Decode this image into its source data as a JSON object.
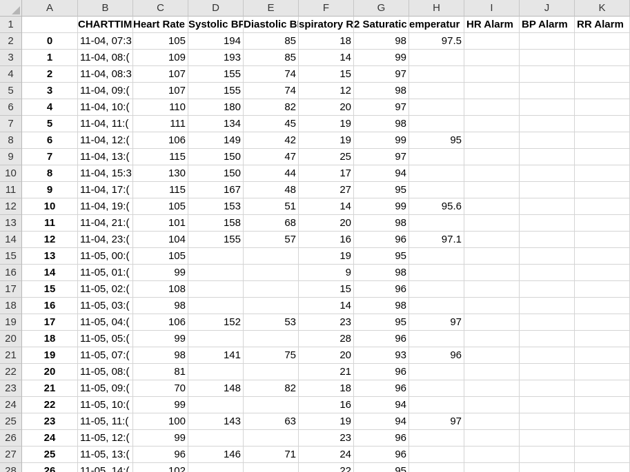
{
  "columns": [
    "A",
    "B",
    "C",
    "D",
    "E",
    "F",
    "G",
    "H",
    "I",
    "J",
    "K"
  ],
  "header_row": {
    "row_num": "1",
    "cells": [
      "",
      "CHARTTIMI",
      "Heart Rate",
      "Systolic BP",
      "Diastolic BP",
      "spiratory R",
      "2 Saturatic",
      "emperatur",
      "HR Alarm",
      "BP Alarm",
      "RR Alarm"
    ]
  },
  "rows": [
    {
      "r": "2",
      "a": "0",
      "b": "11-04, 07:3",
      "c": "105",
      "d": "194",
      "e": "85",
      "f": "18",
      "g": "98",
      "h": "97.5"
    },
    {
      "r": "3",
      "a": "1",
      "b": "11-04, 08:(",
      "c": "109",
      "d": "193",
      "e": "85",
      "f": "14",
      "g": "99",
      "h": ""
    },
    {
      "r": "4",
      "a": "2",
      "b": "11-04, 08:3",
      "c": "107",
      "d": "155",
      "e": "74",
      "f": "15",
      "g": "97",
      "h": ""
    },
    {
      "r": "5",
      "a": "3",
      "b": "11-04, 09:(",
      "c": "107",
      "d": "155",
      "e": "74",
      "f": "12",
      "g": "98",
      "h": ""
    },
    {
      "r": "6",
      "a": "4",
      "b": "11-04, 10:(",
      "c": "110",
      "d": "180",
      "e": "82",
      "f": "20",
      "g": "97",
      "h": ""
    },
    {
      "r": "7",
      "a": "5",
      "b": "11-04, 11:(",
      "c": "111",
      "d": "134",
      "e": "45",
      "f": "19",
      "g": "98",
      "h": ""
    },
    {
      "r": "8",
      "a": "6",
      "b": "11-04, 12:(",
      "c": "106",
      "d": "149",
      "e": "42",
      "f": "19",
      "g": "99",
      "h": "95"
    },
    {
      "r": "9",
      "a": "7",
      "b": "11-04, 13:(",
      "c": "115",
      "d": "150",
      "e": "47",
      "f": "25",
      "g": "97",
      "h": ""
    },
    {
      "r": "10",
      "a": "8",
      "b": "11-04, 15:3",
      "c": "130",
      "d": "150",
      "e": "44",
      "f": "17",
      "g": "94",
      "h": ""
    },
    {
      "r": "11",
      "a": "9",
      "b": "11-04, 17:(",
      "c": "115",
      "d": "167",
      "e": "48",
      "f": "27",
      "g": "95",
      "h": ""
    },
    {
      "r": "12",
      "a": "10",
      "b": "11-04, 19:(",
      "c": "105",
      "d": "153",
      "e": "51",
      "f": "14",
      "g": "99",
      "h": "95.6"
    },
    {
      "r": "13",
      "a": "11",
      "b": "11-04, 21:(",
      "c": "101",
      "d": "158",
      "e": "68",
      "f": "20",
      "g": "98",
      "h": ""
    },
    {
      "r": "14",
      "a": "12",
      "b": "11-04, 23:(",
      "c": "104",
      "d": "155",
      "e": "57",
      "f": "16",
      "g": "96",
      "h": "97.1"
    },
    {
      "r": "15",
      "a": "13",
      "b": "11-05, 00:(",
      "c": "105",
      "d": "",
      "e": "",
      "f": "19",
      "g": "95",
      "h": ""
    },
    {
      "r": "16",
      "a": "14",
      "b": "11-05, 01:(",
      "c": "99",
      "d": "",
      "e": "",
      "f": "9",
      "g": "98",
      "h": ""
    },
    {
      "r": "17",
      "a": "15",
      "b": "11-05, 02:(",
      "c": "108",
      "d": "",
      "e": "",
      "f": "15",
      "g": "96",
      "h": ""
    },
    {
      "r": "18",
      "a": "16",
      "b": "11-05, 03:(",
      "c": "98",
      "d": "",
      "e": "",
      "f": "14",
      "g": "98",
      "h": ""
    },
    {
      "r": "19",
      "a": "17",
      "b": "11-05, 04:(",
      "c": "106",
      "d": "152",
      "e": "53",
      "f": "23",
      "g": "95",
      "h": "97"
    },
    {
      "r": "20",
      "a": "18",
      "b": "11-05, 05:(",
      "c": "99",
      "d": "",
      "e": "",
      "f": "28",
      "g": "96",
      "h": ""
    },
    {
      "r": "21",
      "a": "19",
      "b": "11-05, 07:(",
      "c": "98",
      "d": "141",
      "e": "75",
      "f": "20",
      "g": "93",
      "h": "96"
    },
    {
      "r": "22",
      "a": "20",
      "b": "11-05, 08:(",
      "c": "81",
      "d": "",
      "e": "",
      "f": "21",
      "g": "96",
      "h": ""
    },
    {
      "r": "23",
      "a": "21",
      "b": "11-05, 09:(",
      "c": "70",
      "d": "148",
      "e": "82",
      "f": "18",
      "g": "96",
      "h": ""
    },
    {
      "r": "24",
      "a": "22",
      "b": "11-05, 10:(",
      "c": "99",
      "d": "",
      "e": "",
      "f": "16",
      "g": "94",
      "h": ""
    },
    {
      "r": "25",
      "a": "23",
      "b": "11-05, 11:(",
      "c": "100",
      "d": "143",
      "e": "63",
      "f": "19",
      "g": "94",
      "h": "97"
    },
    {
      "r": "26",
      "a": "24",
      "b": "11-05, 12:(",
      "c": "99",
      "d": "",
      "e": "",
      "f": "23",
      "g": "96",
      "h": ""
    },
    {
      "r": "27",
      "a": "25",
      "b": "11-05, 13:(",
      "c": "96",
      "d": "146",
      "e": "71",
      "f": "24",
      "g": "96",
      "h": ""
    },
    {
      "r": "28",
      "a": "26",
      "b": "11-05, 14:(",
      "c": "102",
      "d": "",
      "e": "",
      "f": "22",
      "g": "95",
      "h": ""
    }
  ]
}
